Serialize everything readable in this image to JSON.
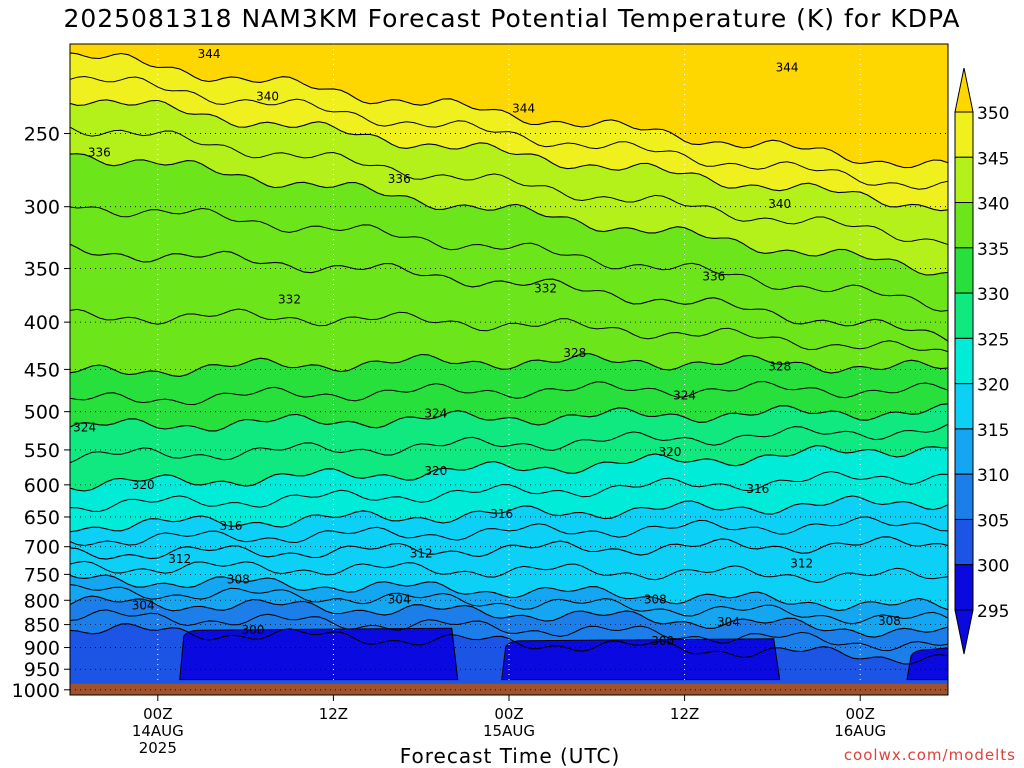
{
  "title": "2025081318 NAM3KM Forecast Potential Temperature (K) for KDPA",
  "credit": "coolwx.com/modelts",
  "colors": {
    "ground": "#a0522d",
    "bands": [
      "#0a0ae0",
      "#1c54e6",
      "#1c7ee8",
      "#14a6f0",
      "#0cd0f5",
      "#00ecd8",
      "#10e880",
      "#28e03c",
      "#6ce61a",
      "#b4f01a",
      "#f0f01e",
      "#ffd700"
    ]
  },
  "chart_data": {
    "type": "heatmap",
    "title": "2025081318 NAM3KM Forecast Potential Temperature (K) for KDPA",
    "xlabel": "Forecast Time (UTC)",
    "ylabel": "",
    "x_ticks": [
      {
        "label": [
          "00Z",
          "14AUG",
          "2025"
        ],
        "hours": 6
      },
      {
        "label": [
          "12Z"
        ],
        "hours": 18
      },
      {
        "label": [
          "00Z",
          "15AUG"
        ],
        "hours": 30
      },
      {
        "label": [
          "12Z"
        ],
        "hours": 42
      },
      {
        "label": [
          "00Z",
          "16AUG"
        ],
        "hours": 54
      }
    ],
    "x_range_hours": [
      0,
      60
    ],
    "y_ticks": [
      250,
      300,
      350,
      400,
      450,
      500,
      550,
      600,
      650,
      700,
      750,
      800,
      850,
      900,
      950,
      1000
    ],
    "y_range": [
      200,
      1013
    ],
    "y_scale": "log-pressure (inverted)",
    "grid": true,
    "colorbar": {
      "values": [
        295,
        300,
        305,
        310,
        315,
        320,
        325,
        330,
        335,
        340,
        345,
        350
      ],
      "units": "K",
      "extend": "both"
    },
    "contour_levels": [
      300,
      304,
      308,
      312,
      316,
      320,
      324,
      328,
      332,
      336,
      340,
      344
    ],
    "isentrope_levels_hPa": [
      {
        "theta": 344,
        "p_start": 205,
        "p_mid": 238,
        "p_end": 272
      },
      {
        "theta": 340,
        "p_start": 228,
        "p_mid": 262,
        "p_end": 300
      },
      {
        "theta": 336,
        "p_start": 262,
        "p_mid": 300,
        "p_end": 352
      },
      {
        "theta": 332,
        "p_start": 335,
        "p_mid": 350,
        "p_end": 415
      },
      {
        "theta": 328,
        "p_start": 455,
        "p_mid": 430,
        "p_end": 450
      },
      {
        "theta": 324,
        "p_start": 520,
        "p_mid": 505,
        "p_end": 500
      },
      {
        "theta": 320,
        "p_start": 600,
        "p_mid": 580,
        "p_end": 545
      },
      {
        "theta": 316,
        "p_start": 665,
        "p_mid": 645,
        "p_end": 625
      },
      {
        "theta": 312,
        "p_start": 712,
        "p_mid": 705,
        "p_end": 695
      },
      {
        "theta": 308,
        "p_start": 760,
        "p_mid": 775,
        "p_end": 815
      },
      {
        "theta": 304,
        "p_start": 805,
        "p_mid": 815,
        "p_end": 870
      },
      {
        "theta": 300,
        "p_start": 860,
        "p_mid": 885,
        "p_end": 925
      }
    ],
    "contour_labels": [
      {
        "text": "344",
        "h": 9.5,
        "p": 205
      },
      {
        "text": "344",
        "h": 49,
        "p": 212
      },
      {
        "text": "344",
        "h": 31,
        "p": 235
      },
      {
        "text": "340",
        "h": 13.5,
        "p": 228
      },
      {
        "text": "340",
        "h": 48.5,
        "p": 298
      },
      {
        "text": "336",
        "h": 2,
        "p": 262
      },
      {
        "text": "336",
        "h": 22.5,
        "p": 280
      },
      {
        "text": "336",
        "h": 44,
        "p": 357
      },
      {
        "text": "332",
        "h": 15,
        "p": 378
      },
      {
        "text": "332",
        "h": 32.5,
        "p": 368
      },
      {
        "text": "328",
        "h": 34.5,
        "p": 432
      },
      {
        "text": "328",
        "h": 48.5,
        "p": 447
      },
      {
        "text": "324",
        "h": 1,
        "p": 520
      },
      {
        "text": "324",
        "h": 25,
        "p": 502
      },
      {
        "text": "324",
        "h": 42,
        "p": 480
      },
      {
        "text": "320",
        "h": 5,
        "p": 600
      },
      {
        "text": "320",
        "h": 25,
        "p": 580
      },
      {
        "text": "320",
        "h": 41,
        "p": 553
      },
      {
        "text": "316",
        "h": 11,
        "p": 665
      },
      {
        "text": "316",
        "h": 29.5,
        "p": 645
      },
      {
        "text": "316",
        "h": 47,
        "p": 606
      },
      {
        "text": "312",
        "h": 7.5,
        "p": 722
      },
      {
        "text": "312",
        "h": 24,
        "p": 712
      },
      {
        "text": "312",
        "h": 50,
        "p": 730
      },
      {
        "text": "308",
        "h": 11.5,
        "p": 760
      },
      {
        "text": "308",
        "h": 40,
        "p": 798
      },
      {
        "text": "308",
        "h": 56,
        "p": 842
      },
      {
        "text": "304",
        "h": 5,
        "p": 810
      },
      {
        "text": "304",
        "h": 22.5,
        "p": 798
      },
      {
        "text": "304",
        "h": 45,
        "p": 845
      },
      {
        "text": "300",
        "h": 12.5,
        "p": 862
      },
      {
        "text": "300",
        "h": 40.5,
        "p": 885
      }
    ]
  },
  "xlabel": "Forecast Time (UTC)"
}
